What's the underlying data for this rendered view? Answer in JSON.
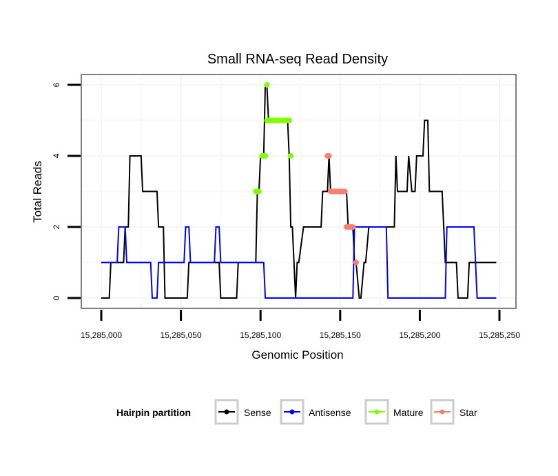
{
  "chart_data": {
    "type": "line",
    "title": "Small RNA-seq Read Density",
    "xlabel": "Genomic Position",
    "ylabel": "Total Reads",
    "x_offset": 15285000,
    "xlim": [
      15284988,
      15285261
    ],
    "ylim": [
      -0.3,
      6.3
    ],
    "x_ticks": [
      15285000,
      15285050,
      15285100,
      15285150,
      15285200,
      15285250
    ],
    "x_tick_labels": [
      "15,285,000",
      "15,285,050",
      "15,285,100",
      "15,285,150",
      "15,285,200",
      "15,285,250"
    ],
    "y_ticks": [
      0,
      2,
      4,
      6
    ],
    "y_tick_labels": [
      "0",
      "2",
      "4",
      "6"
    ],
    "grid": true,
    "legend": {
      "title": "Hairpin partition",
      "placement": "bottom",
      "entries": [
        {
          "label": "Sense",
          "color": "#000000"
        },
        {
          "label": "Antisense",
          "color": "#0000ff"
        },
        {
          "label": "Mature",
          "color": "#7fff00"
        },
        {
          "label": "Star",
          "color": "#fa8072"
        }
      ]
    },
    "series": [
      {
        "name": "Sense",
        "color": "#000000",
        "kind": "line",
        "x": [
          0,
          5,
          6,
          14,
          15,
          17,
          18,
          25,
          26,
          35,
          36,
          39,
          40,
          54,
          55,
          74,
          75,
          85,
          86,
          97,
          98,
          99,
          100,
          102,
          103,
          104,
          105,
          117,
          118,
          119,
          120,
          122,
          123,
          124,
          127,
          128,
          138,
          139,
          142,
          143,
          144,
          154,
          155,
          158,
          159,
          160,
          162,
          163,
          165,
          166,
          168,
          169,
          184,
          185,
          186,
          192,
          193,
          195,
          197,
          198,
          202,
          203,
          205,
          206,
          214,
          215,
          216,
          223,
          224,
          230,
          231,
          248
        ],
        "y": [
          0,
          0,
          1,
          1,
          2,
          2,
          4,
          4,
          3,
          3,
          2,
          2,
          0,
          0,
          1,
          1,
          0,
          0,
          1,
          1,
          3,
          3,
          4,
          4,
          6,
          6,
          5,
          5,
          4,
          2,
          2,
          0,
          1,
          1,
          2,
          2,
          2,
          3,
          3,
          4,
          3,
          3,
          2,
          2,
          1,
          1,
          0,
          0,
          1,
          1,
          2,
          2,
          2,
          4,
          3,
          3,
          4,
          3,
          3,
          4,
          4,
          5,
          5,
          3,
          3,
          2,
          1,
          1,
          0,
          0,
          1,
          1
        ]
      },
      {
        "name": "Antisense",
        "color": "#0000ff",
        "kind": "line",
        "x": [
          0,
          10,
          11,
          15,
          16,
          31,
          32,
          35,
          36,
          52,
          53,
          55,
          56,
          71,
          72,
          74,
          75,
          102,
          103,
          158,
          159,
          179,
          180,
          216,
          217,
          234,
          235,
          236,
          248
        ],
        "y": [
          1,
          1,
          2,
          2,
          1,
          1,
          0,
          0,
          1,
          1,
          2,
          2,
          1,
          1,
          2,
          2,
          1,
          1,
          0,
          0,
          2,
          2,
          0,
          0,
          2,
          2,
          1,
          0,
          0
        ]
      },
      {
        "name": "Mature",
        "color": "#7fff00",
        "kind": "points",
        "x": [
          97,
          98,
          99,
          101,
          102,
          103,
          104,
          104,
          105,
          106,
          107,
          108,
          109,
          110,
          111,
          112,
          113,
          114,
          115,
          116,
          117,
          118,
          119
        ],
        "y": [
          3,
          3,
          3,
          4,
          4,
          4,
          6,
          5,
          5,
          5,
          5,
          5,
          5,
          5,
          5,
          5,
          5,
          5,
          5,
          5,
          5,
          5,
          4
        ]
      },
      {
        "name": "Star",
        "color": "#fa8072",
        "kind": "points",
        "x": [
          142,
          143,
          144,
          145,
          146,
          147,
          148,
          149,
          150,
          151,
          152,
          153,
          154,
          155,
          156,
          157,
          158,
          160
        ],
        "y": [
          4,
          4,
          3,
          3,
          3,
          3,
          3,
          3,
          3,
          3,
          3,
          3,
          2,
          2,
          2,
          2,
          2,
          1
        ]
      }
    ]
  }
}
